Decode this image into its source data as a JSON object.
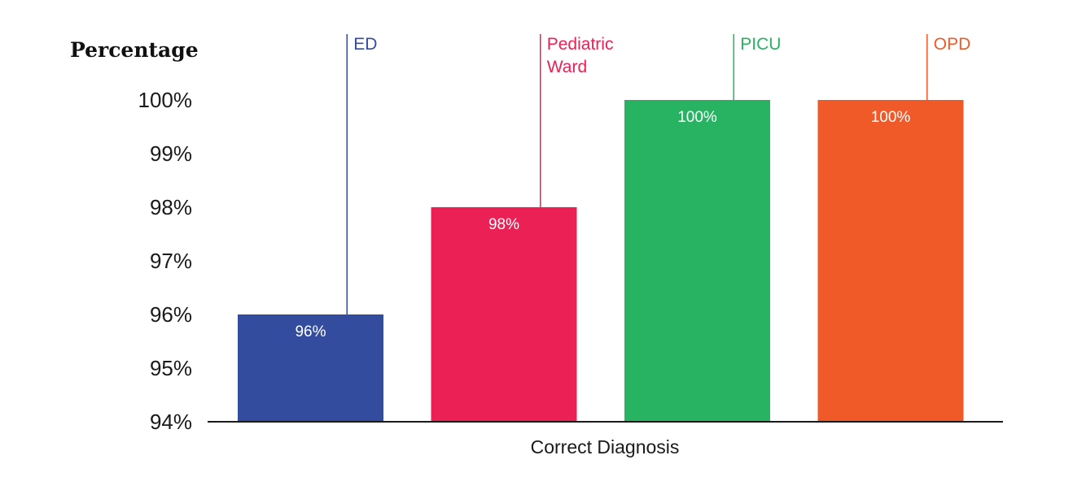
{
  "chart_data": {
    "type": "bar",
    "ylabel": "Percentage",
    "xlabel": "Correct Diagnosis",
    "ylim": [
      94,
      100
    ],
    "yticks": [
      94,
      95,
      96,
      97,
      98,
      99,
      100
    ],
    "ytick_labels": [
      "94%",
      "95%",
      "96%",
      "97%",
      "98%",
      "99%",
      "100%"
    ],
    "categories": [
      {
        "label": "ED",
        "lines": [
          "ED"
        ],
        "value": 96,
        "value_label": "96%",
        "color": "#344C9E"
      },
      {
        "label": "Pediatric Ward",
        "lines": [
          "Pediatric",
          "Ward"
        ],
        "value": 98,
        "value_label": "98%",
        "color": "#EB2055"
      },
      {
        "label": "PICU",
        "lines": [
          "PICU"
        ],
        "value": 100,
        "value_label": "100%",
        "color": "#27B362"
      },
      {
        "label": "OPD",
        "lines": [
          "OPD"
        ],
        "value": 100,
        "value_label": "100%",
        "color": "#F05A28"
      }
    ]
  }
}
